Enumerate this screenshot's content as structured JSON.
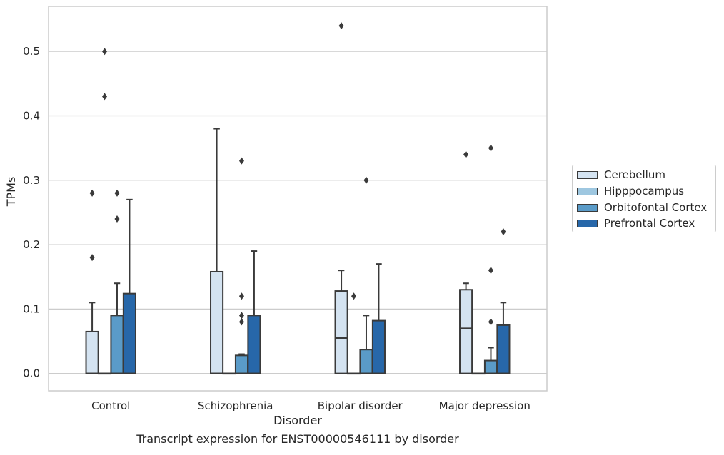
{
  "chart_data": {
    "type": "box",
    "caption": "Transcript expression for ENST00000546111 by disorder",
    "xlabel": "Disorder",
    "ylabel": "TPMs",
    "ylim": [
      -0.027,
      0.57
    ],
    "yticks": [
      0.0,
      0.1,
      0.2,
      0.3,
      0.4,
      0.5
    ],
    "ytick_labels": [
      "0.0",
      "0.1",
      "0.2",
      "0.3",
      "0.4",
      "0.5"
    ],
    "grid": "horizontal",
    "legend_position": "right",
    "categories": [
      "Control",
      "Schizophrenia",
      "Bipolar disorder",
      "Major depression"
    ],
    "series": [
      {
        "name": "Cerebellum",
        "color": "#d4e3f1",
        "boxes": [
          {
            "q1": 0.0,
            "median": 0.0,
            "q3": 0.065,
            "whisker_low": 0.0,
            "whisker_high": 0.11,
            "outliers": [
              0.18,
              0.28
            ]
          },
          {
            "q1": 0.0,
            "median": 0.0,
            "q3": 0.158,
            "whisker_low": 0.0,
            "whisker_high": 0.38,
            "outliers": []
          },
          {
            "q1": 0.0,
            "median": 0.055,
            "q3": 0.128,
            "whisker_low": 0.0,
            "whisker_high": 0.16,
            "outliers": [
              0.54
            ]
          },
          {
            "q1": 0.0,
            "median": 0.07,
            "q3": 0.13,
            "whisker_low": 0.0,
            "whisker_high": 0.14,
            "outliers": [
              0.34
            ]
          }
        ]
      },
      {
        "name": "Hipppocampus",
        "color": "#9ec7e0",
        "boxes": [
          {
            "q1": 0.0,
            "median": 0.0,
            "q3": 0.0,
            "whisker_low": 0.0,
            "whisker_high": 0.0,
            "outliers": [
              0.43,
              0.5
            ]
          },
          {
            "q1": 0.0,
            "median": 0.0,
            "q3": 0.0,
            "whisker_low": 0.0,
            "whisker_high": 0.0,
            "outliers": []
          },
          {
            "q1": 0.0,
            "median": 0.0,
            "q3": 0.0,
            "whisker_low": 0.0,
            "whisker_high": 0.0,
            "outliers": [
              0.12
            ]
          },
          {
            "q1": 0.0,
            "median": 0.0,
            "q3": 0.0,
            "whisker_low": 0.0,
            "whisker_high": 0.0,
            "outliers": []
          }
        ]
      },
      {
        "name": "Orbitofontal Cortex",
        "color": "#5a9bc8",
        "boxes": [
          {
            "q1": 0.0,
            "median": 0.0,
            "q3": 0.09,
            "whisker_low": 0.0,
            "whisker_high": 0.14,
            "outliers": [
              0.24,
              0.28
            ]
          },
          {
            "q1": 0.0,
            "median": 0.0,
            "q3": 0.028,
            "whisker_low": 0.0,
            "whisker_high": 0.03,
            "outliers": [
              0.08,
              0.09,
              0.12,
              0.33
            ]
          },
          {
            "q1": 0.0,
            "median": 0.0,
            "q3": 0.037,
            "whisker_low": 0.0,
            "whisker_high": 0.09,
            "outliers": [
              0.3
            ]
          },
          {
            "q1": 0.0,
            "median": 0.0,
            "q3": 0.02,
            "whisker_low": 0.0,
            "whisker_high": 0.04,
            "outliers": [
              0.08,
              0.16,
              0.35
            ]
          }
        ]
      },
      {
        "name": "Prefrontal Cortex",
        "color": "#2767a9",
        "boxes": [
          {
            "q1": 0.0,
            "median": 0.0,
            "q3": 0.124,
            "whisker_low": 0.0,
            "whisker_high": 0.27,
            "outliers": []
          },
          {
            "q1": 0.0,
            "median": 0.0,
            "q3": 0.09,
            "whisker_low": 0.0,
            "whisker_high": 0.19,
            "outliers": []
          },
          {
            "q1": 0.0,
            "median": 0.0,
            "q3": 0.082,
            "whisker_low": 0.0,
            "whisker_high": 0.17,
            "outliers": []
          },
          {
            "q1": 0.0,
            "median": 0.0,
            "q3": 0.075,
            "whisker_low": 0.0,
            "whisker_high": 0.11,
            "outliers": [
              0.22
            ]
          }
        ]
      }
    ]
  }
}
